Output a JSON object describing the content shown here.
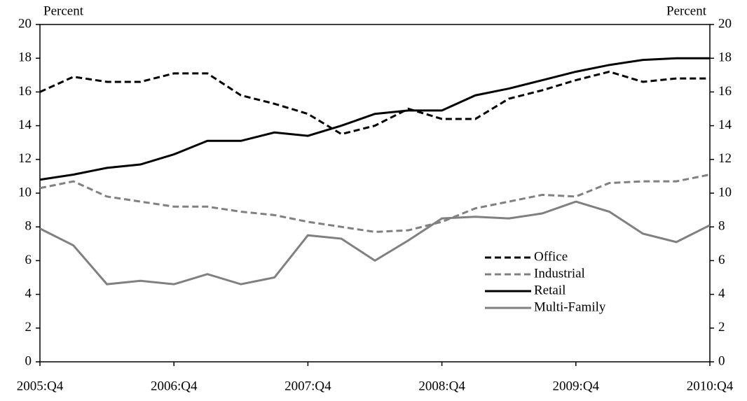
{
  "chart_data": {
    "type": "line",
    "y_label": "Percent",
    "y2_label": "Percent",
    "categories": [
      "2005:Q4",
      null,
      null,
      null,
      "2006:Q4",
      null,
      null,
      null,
      "2007:Q4",
      null,
      null,
      null,
      "2008:Q4",
      null,
      null,
      null,
      "2009:Q4",
      null,
      null,
      null,
      "2010:Q4"
    ],
    "series": [
      {
        "name": "Office",
        "color": "#000000",
        "dash": true,
        "values": [
          16.0,
          16.9,
          16.6,
          16.6,
          17.1,
          17.1,
          15.8,
          15.3,
          14.7,
          13.5,
          14.0,
          15.0,
          14.4,
          14.4,
          15.6,
          16.1,
          16.7,
          17.2,
          16.6,
          16.8,
          16.8
        ]
      },
      {
        "name": "Industrial",
        "color": "#808080",
        "dash": true,
        "values": [
          10.3,
          10.7,
          9.8,
          9.5,
          9.2,
          9.2,
          8.9,
          8.7,
          8.3,
          8.0,
          7.7,
          7.8,
          8.3,
          9.1,
          9.5,
          9.9,
          9.8,
          10.6,
          10.7,
          10.7,
          11.1
        ]
      },
      {
        "name": "Retail",
        "color": "#000000",
        "dash": false,
        "values": [
          10.8,
          11.1,
          11.5,
          11.7,
          12.3,
          13.1,
          13.1,
          13.6,
          13.4,
          14.0,
          14.7,
          14.9,
          14.9,
          15.8,
          16.2,
          16.7,
          17.2,
          17.6,
          17.9,
          18.0,
          18.0
        ]
      },
      {
        "name": "Multi-Family",
        "color": "#808080",
        "dash": false,
        "values": [
          7.9,
          6.9,
          4.6,
          4.8,
          4.6,
          5.2,
          4.6,
          5.0,
          7.5,
          7.3,
          6.0,
          7.2,
          8.5,
          8.6,
          8.5,
          8.8,
          9.5,
          8.9,
          7.6,
          7.1,
          8.1
        ]
      }
    ],
    "ylim": [
      0,
      20
    ],
    "yticks": [
      0,
      2,
      4,
      6,
      8,
      10,
      12,
      14,
      16,
      18,
      20
    ],
    "y2lim": [
      0,
      20
    ],
    "y2ticks": [
      0,
      2,
      4,
      6,
      8,
      10,
      12,
      14,
      16,
      18,
      20
    ],
    "legend": "lower-right"
  }
}
